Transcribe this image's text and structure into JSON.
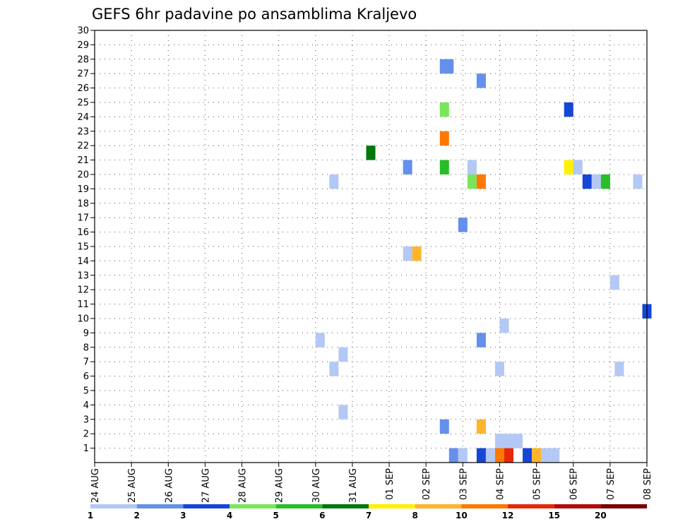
{
  "chart_data": {
    "type": "heatmap",
    "title": "GEFS 6hr padavine po ansamblima Kraljevo",
    "xlabel": "",
    "ylabel": "",
    "y_ticks": [
      1,
      2,
      3,
      4,
      5,
      6,
      7,
      8,
      9,
      10,
      11,
      12,
      13,
      14,
      15,
      16,
      17,
      18,
      19,
      20,
      21,
      22,
      23,
      24,
      25,
      26,
      27,
      28,
      29,
      30
    ],
    "x_ticks": [
      "24 AUG",
      "25 AUG",
      "26 AUG",
      "27 AUG",
      "28 AUG",
      "29 AUG",
      "30 AUG",
      "31 AUG",
      "01 SEP",
      "02 SEP",
      "03 SEP",
      "04 SEP",
      "05 SEP",
      "06 SEP",
      "07 SEP",
      "08 SEP"
    ],
    "x_range_days": [
      0,
      15
    ],
    "y_range": [
      0,
      30
    ],
    "grid": true,
    "legend_position": "bottom",
    "colorbar": {
      "labels": [
        "1",
        "2",
        "3",
        "4",
        "5",
        "6",
        "7",
        "8",
        "10",
        "12",
        "15",
        "20"
      ],
      "colors": [
        "#b4c8f5",
        "#6490ec",
        "#1446d8",
        "#78e65a",
        "#28be28",
        "#00780a",
        "#fff000",
        "#ffb42d",
        "#ff7800",
        "#e6280a",
        "#b40a0a",
        "#780000"
      ]
    },
    "cells": [
      {
        "x": 9.625,
        "y": 28,
        "c": "#6490ec"
      },
      {
        "x": 9.5,
        "y": 28,
        "c": "#6490ec"
      },
      {
        "x": 10.5,
        "y": 27,
        "c": "#6490ec"
      },
      {
        "x": 9.5,
        "y": 25,
        "c": "#78e65a"
      },
      {
        "x": 12.875,
        "y": 25,
        "c": "#1446d8"
      },
      {
        "x": 9.5,
        "y": 23,
        "c": "#ff7800"
      },
      {
        "x": 7.5,
        "y": 22,
        "c": "#00780a"
      },
      {
        "x": 8.5,
        "y": 21,
        "c": "#6490ec"
      },
      {
        "x": 9.5,
        "y": 21,
        "c": "#28be28"
      },
      {
        "x": 10.25,
        "y": 21,
        "c": "#b4c8f5"
      },
      {
        "x": 12.875,
        "y": 21,
        "c": "#fff000"
      },
      {
        "x": 13.125,
        "y": 21,
        "c": "#b4c8f5"
      },
      {
        "x": 6.5,
        "y": 20,
        "c": "#b4c8f5"
      },
      {
        "x": 10.25,
        "y": 20,
        "c": "#78e65a"
      },
      {
        "x": 10.5,
        "y": 20,
        "c": "#ff7800"
      },
      {
        "x": 13.375,
        "y": 20,
        "c": "#1446d8"
      },
      {
        "x": 13.625,
        "y": 20,
        "c": "#b4c8f5"
      },
      {
        "x": 13.875,
        "y": 20,
        "c": "#28be28"
      },
      {
        "x": 14.75,
        "y": 20,
        "c": "#b4c8f5"
      },
      {
        "x": 10.0,
        "y": 17,
        "c": "#6490ec"
      },
      {
        "x": 8.5,
        "y": 15,
        "c": "#b4c8f5"
      },
      {
        "x": 8.75,
        "y": 15,
        "c": "#ffb42d"
      },
      {
        "x": 14.125,
        "y": 13,
        "c": "#b4c8f5"
      },
      {
        "x": 15.0,
        "y": 11,
        "c": "#1446d8"
      },
      {
        "x": 11.125,
        "y": 10,
        "c": "#b4c8f5"
      },
      {
        "x": 6.125,
        "y": 9,
        "c": "#b4c8f5"
      },
      {
        "x": 10.5,
        "y": 9,
        "c": "#6490ec"
      },
      {
        "x": 6.75,
        "y": 8,
        "c": "#b4c8f5"
      },
      {
        "x": 6.5,
        "y": 7,
        "c": "#b4c8f5"
      },
      {
        "x": 11.0,
        "y": 7,
        "c": "#b4c8f5"
      },
      {
        "x": 14.25,
        "y": 7,
        "c": "#b4c8f5"
      },
      {
        "x": 6.75,
        "y": 4,
        "c": "#b4c8f5"
      },
      {
        "x": 9.5,
        "y": 3,
        "c": "#6490ec"
      },
      {
        "x": 10.5,
        "y": 3,
        "c": "#ffb42d"
      },
      {
        "x": 11.0,
        "y": 2,
        "c": "#b4c8f5"
      },
      {
        "x": 11.25,
        "y": 2,
        "c": "#b4c8f5"
      },
      {
        "x": 11.5,
        "y": 2,
        "c": "#b4c8f5"
      },
      {
        "x": 9.75,
        "y": 1,
        "c": "#6490ec"
      },
      {
        "x": 10.0,
        "y": 1,
        "c": "#b4c8f5"
      },
      {
        "x": 10.5,
        "y": 1,
        "c": "#1446d8"
      },
      {
        "x": 10.75,
        "y": 1,
        "c": "#b4c8f5"
      },
      {
        "x": 11.0,
        "y": 1,
        "c": "#ff7800"
      },
      {
        "x": 11.25,
        "y": 1,
        "c": "#e6280a"
      },
      {
        "x": 11.75,
        "y": 1,
        "c": "#1446d8"
      },
      {
        "x": 12.0,
        "y": 1,
        "c": "#ffb42d"
      },
      {
        "x": 12.25,
        "y": 1,
        "c": "#b4c8f5"
      },
      {
        "x": 12.5,
        "y": 1,
        "c": "#b4c8f5"
      }
    ]
  }
}
